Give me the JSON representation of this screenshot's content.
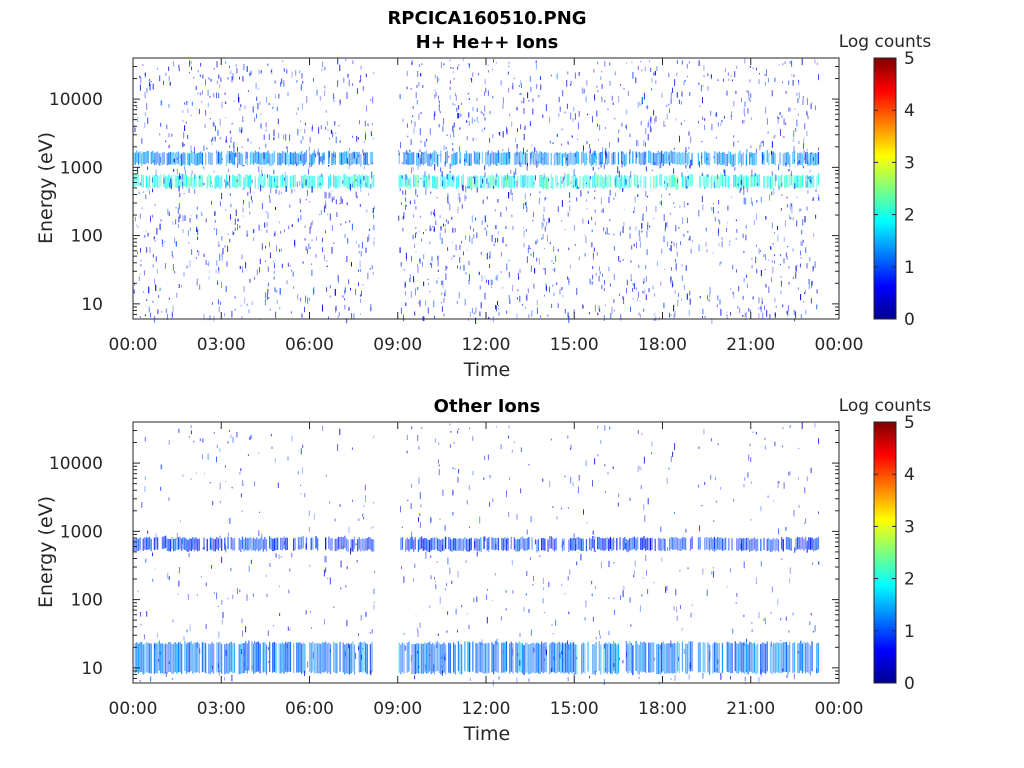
{
  "figure": {
    "filename": "RPCICA160510.PNG",
    "colormap": [
      "#00008f",
      "#0000ff",
      "#007fff",
      "#00ffff",
      "#7fff7f",
      "#ffff00",
      "#ff7f00",
      "#ff0000",
      "#7f0000"
    ]
  },
  "chart_data": [
    {
      "type": "heatmap",
      "title": "H+ He++ Ions",
      "xlabel": "Time",
      "ylabel": "Energy (eV)",
      "xlim": [
        "00:00",
        "24:00"
      ],
      "x_tick_labels": [
        "00:00",
        "03:00",
        "06:00",
        "09:00",
        "12:00",
        "15:00",
        "18:00",
        "21:00",
        "00:00"
      ],
      "yscale": "log",
      "ylim": [
        6,
        40000
      ],
      "y_ticks": [
        10,
        100,
        1000,
        10000
      ],
      "y_tick_labels": [
        "10",
        "100",
        "1000",
        "10000"
      ],
      "colorbar": {
        "label": "Log counts",
        "range": [
          0,
          5
        ],
        "ticks": [
          "0",
          "1",
          "2",
          "3",
          "4",
          "5"
        ]
      },
      "data_gaps_hours": [
        [
          8.2,
          9.0
        ],
        [
          19.0,
          19.2
        ]
      ],
      "data_end_hours": 23.3,
      "bands": [
        {
          "energy_eV": 620,
          "log_counts": 2.0
        },
        {
          "energy_eV": 1350,
          "log_counts": 1.3
        }
      ]
    },
    {
      "type": "heatmap",
      "title": "Other Ions",
      "xlabel": "Time",
      "ylabel": "Energy (eV)",
      "xlim": [
        "00:00",
        "24:00"
      ],
      "x_tick_labels": [
        "00:00",
        "03:00",
        "06:00",
        "09:00",
        "12:00",
        "15:00",
        "18:00",
        "21:00",
        "00:00"
      ],
      "yscale": "log",
      "ylim": [
        6,
        40000
      ],
      "y_ticks": [
        10,
        100,
        1000,
        10000
      ],
      "y_tick_labels": [
        "10",
        "100",
        "1000",
        "10000"
      ],
      "colorbar": {
        "label": "Log counts",
        "range": [
          0,
          5
        ],
        "ticks": [
          "0",
          "1",
          "2",
          "3",
          "4",
          "5"
        ]
      },
      "data_gaps_hours": [
        [
          8.2,
          9.0
        ],
        [
          19.0,
          19.2
        ]
      ],
      "data_end_hours": 23.3,
      "bands": [
        {
          "energy_eV": 650,
          "log_counts": 0.9
        },
        {
          "energy_eV": 14,
          "log_counts": 1.2
        }
      ]
    }
  ]
}
